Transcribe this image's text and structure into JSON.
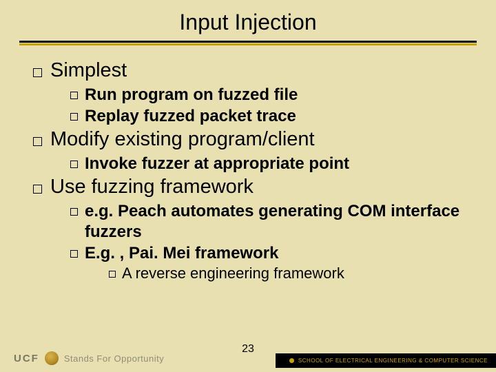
{
  "colors": {
    "background": "#e8e0b0",
    "accent_gold": "#c9a400",
    "text": "#000000",
    "footer_text": "#7b7763",
    "footer_right_bg": "#000000",
    "footer_right_fg": "#c9a400"
  },
  "title": "Input Injection",
  "bullets": {
    "b1": "Simplest",
    "b1_1": "Run program on fuzzed file",
    "b1_2": "Replay fuzzed packet trace",
    "b2": "Modify existing program/client",
    "b2_1": "Invoke fuzzer at appropriate point",
    "b3": "Use fuzzing framework",
    "b3_1": "e.g. Peach automates generating COM interface fuzzers",
    "b3_2": "E.g. , Pai. Mei framework",
    "b3_2_1": "A reverse engineering framework"
  },
  "footer": {
    "org": "UCF",
    "tagline": "Stands For Opportunity",
    "page": "23",
    "school": "SCHOOL OF ELECTRICAL ENGINEERING & COMPUTER SCIENCE"
  }
}
